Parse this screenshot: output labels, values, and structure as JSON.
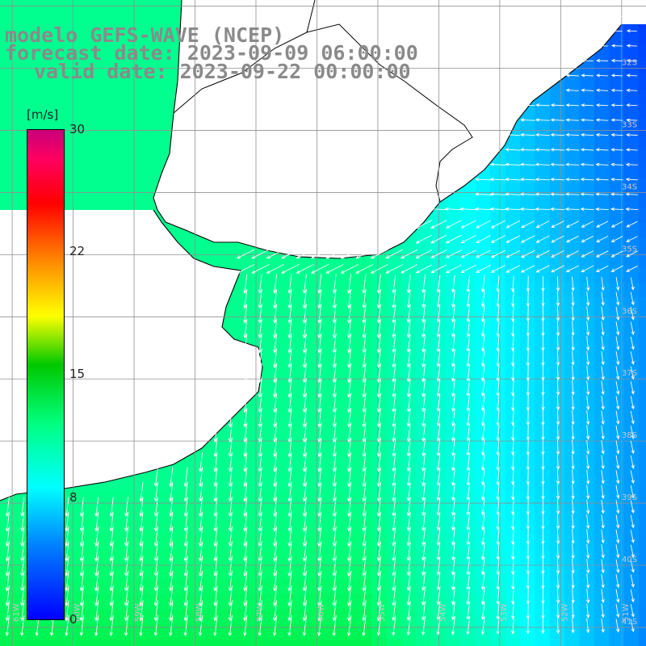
{
  "title": {
    "line1": "modelo GEFS-WAVE (NCEP)",
    "line2": "forecast date: 2023-09-09 06:00:00",
    "line3": "valid date: 2023-09-22 00:00:00"
  },
  "colorbar": {
    "unit": "[m/s]",
    "ticks": [
      "30",
      "22",
      "15",
      "8",
      "0"
    ],
    "tick_values": [
      30,
      22,
      15,
      8,
      0
    ],
    "min": 0,
    "max": 30,
    "colors": [
      "#0000ff",
      "#0080ff",
      "#00ffff",
      "#00ff80",
      "#00c800",
      "#ffff00",
      "#ff8000",
      "#ff0000",
      "#c8007a"
    ]
  },
  "map": {
    "lat_labels": [
      "32S",
      "33S",
      "34S",
      "35S",
      "36S",
      "37S",
      "38S",
      "39S",
      "40S",
      "41S"
    ],
    "lon_labels": [
      "61W",
      "60W",
      "59W",
      "58W",
      "57W",
      "56W",
      "55W",
      "54W",
      "53W",
      "52W",
      "51W"
    ],
    "extent": {
      "lon": [
        -61.2,
        -50.6
      ],
      "lat": [
        -41.3,
        -30.9
      ]
    },
    "land_color": "#ffffff",
    "coast_color": "#000000",
    "grid_color": "#909090",
    "arrow_color": "#ffffff"
  }
}
